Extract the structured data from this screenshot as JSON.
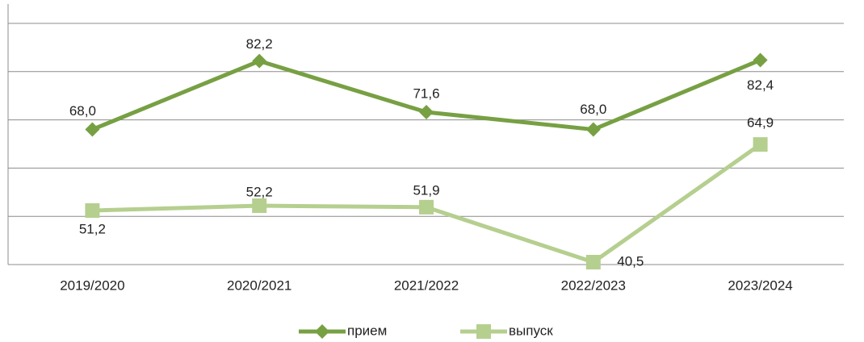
{
  "chart_data": {
    "type": "line",
    "categories": [
      "2019/2020",
      "2020/2021",
      "2021/2022",
      "2022/2023",
      "2023/2024"
    ],
    "series": [
      {
        "name": "прием",
        "color": "#77a043",
        "marker": "diamond",
        "values": [
          68.0,
          82.2,
          71.6,
          68.0,
          82.4
        ],
        "value_labels": [
          "68,0",
          "82,2",
          "71,6",
          "68,0",
          "82,4"
        ]
      },
      {
        "name": "выпуск",
        "color": "#b5cf8f",
        "marker": "square",
        "values": [
          51.2,
          52.2,
          51.9,
          40.5,
          64.9
        ],
        "value_labels": [
          "51,2",
          "52,2",
          "51,9",
          "40,5",
          "64,9"
        ]
      }
    ],
    "ylim": [
      40,
      90
    ],
    "yticks": [
      40,
      50,
      60,
      70,
      80,
      90
    ],
    "grid": true,
    "legend": "bottom"
  }
}
